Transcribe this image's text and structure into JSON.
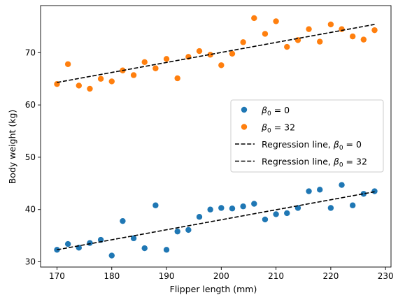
{
  "chart_data": {
    "type": "scatter",
    "xlabel": "Flipper length (mm)",
    "ylabel": "Body weight (kg)",
    "xlim": [
      167,
      231
    ],
    "ylim": [
      29,
      79
    ],
    "x_ticks": [
      170,
      180,
      190,
      200,
      210,
      220,
      230
    ],
    "y_ticks": [
      30,
      40,
      50,
      60,
      70
    ],
    "grid": false,
    "legend_position": "center-right",
    "colors": {
      "blue": "#1f77b4",
      "orange": "#ff7f0e",
      "line": "#000000"
    },
    "series": [
      {
        "name": "β0 = 0",
        "legend": {
          "symbol": "β",
          "sub": "0",
          "rest": " = 0"
        },
        "color": "#1f77b4",
        "x": [
          170,
          172,
          174,
          176,
          178,
          180,
          182,
          184,
          186,
          188,
          190,
          192,
          194,
          196,
          198,
          200,
          202,
          204,
          206,
          208,
          210,
          212,
          214,
          216,
          218,
          220,
          222,
          224,
          226,
          228
        ],
        "y": [
          32.3,
          33.4,
          32.7,
          33.6,
          34.2,
          31.2,
          37.8,
          34.5,
          32.6,
          40.8,
          32.3,
          35.8,
          36.1,
          38.6,
          40.0,
          40.3,
          40.2,
          40.6,
          41.1,
          38.1,
          39.1,
          39.3,
          40.3,
          43.5,
          43.8,
          40.3,
          44.7,
          40.8,
          43.0,
          43.5
        ]
      },
      {
        "name": "β0 = 32",
        "legend": {
          "symbol": "β",
          "sub": "0",
          "rest": " = 32"
        },
        "color": "#ff7f0e",
        "x": [
          170,
          172,
          174,
          176,
          178,
          180,
          182,
          184,
          186,
          188,
          190,
          192,
          194,
          196,
          198,
          200,
          202,
          204,
          206,
          208,
          210,
          212,
          214,
          216,
          218,
          220,
          222,
          224,
          226,
          228
        ],
        "y": [
          64.0,
          67.8,
          63.7,
          63.1,
          65.0,
          64.5,
          66.6,
          65.7,
          68.2,
          67.0,
          68.8,
          65.1,
          69.2,
          70.3,
          69.6,
          67.6,
          69.8,
          72.0,
          76.6,
          73.6,
          76.0,
          71.1,
          72.4,
          74.5,
          72.1,
          75.4,
          74.5,
          73.1,
          72.5,
          74.3
        ]
      }
    ],
    "regression_lines": [
      {
        "name": "Regression line, β0 = 0",
        "legend": {
          "prefix": "Regression line, ",
          "symbol": "β",
          "sub": "0",
          "rest": " = 0"
        },
        "style": "dashed",
        "color": "#000000",
        "x": [
          170,
          228
        ],
        "y": [
          32.3,
          43.4
        ]
      },
      {
        "name": "Regression line, β0 = 32",
        "legend": {
          "prefix": "Regression line, ",
          "symbol": "β",
          "sub": "0",
          "rest": " = 32"
        },
        "style": "dashed",
        "color": "#000000",
        "x": [
          170,
          228
        ],
        "y": [
          64.3,
          75.4
        ]
      }
    ]
  }
}
